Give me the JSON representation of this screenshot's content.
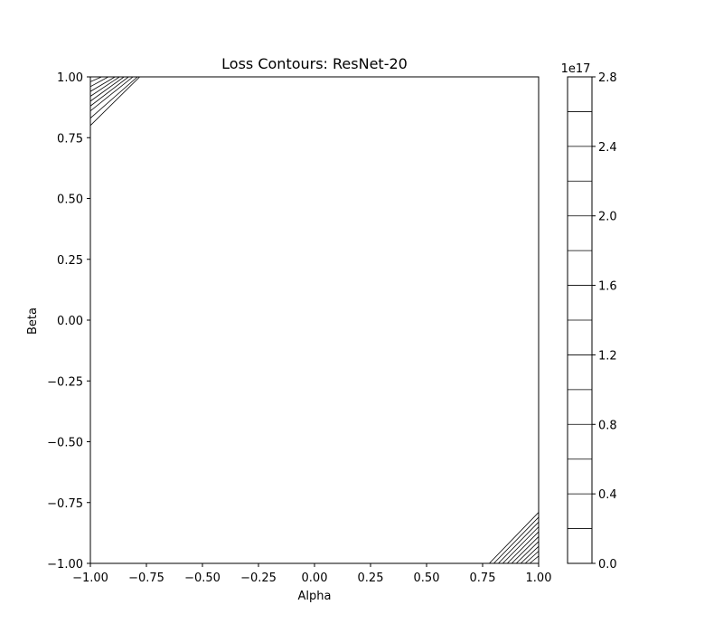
{
  "chart_data": {
    "type": "contour",
    "title": "Loss Contours: ResNet-20",
    "xlabel": "Alpha",
    "ylabel": "Beta",
    "xlim": [
      -1.0,
      1.0
    ],
    "ylim": [
      -1.0,
      1.0
    ],
    "x_ticks": [
      -1.0,
      -0.75,
      -0.5,
      -0.25,
      0.0,
      0.25,
      0.5,
      0.75,
      1.0
    ],
    "x_tick_labels": [
      "−1.00",
      "−0.75",
      "−0.50",
      "−0.25",
      "0.00",
      "0.25",
      "0.50",
      "0.75",
      "1.00"
    ],
    "y_ticks": [
      -1.0,
      -0.75,
      -0.5,
      -0.25,
      0.0,
      0.25,
      0.5,
      0.75,
      1.0
    ],
    "y_tick_labels": [
      "−1.00",
      "−0.75",
      "−0.50",
      "−0.25",
      "0.00",
      "0.25",
      "0.50",
      "0.75",
      "1.00"
    ],
    "contour_lines": [
      {
        "region": "top-left",
        "points": [
          [
            -1.0,
            0.8
          ],
          [
            -0.78,
            1.0
          ]
        ]
      },
      {
        "region": "top-left",
        "points": [
          [
            -1.0,
            0.83
          ],
          [
            -0.79,
            1.0
          ]
        ]
      },
      {
        "region": "top-left",
        "points": [
          [
            -1.0,
            0.86
          ],
          [
            -0.81,
            1.0
          ]
        ]
      },
      {
        "region": "top-left",
        "points": [
          [
            -1.0,
            0.88
          ],
          [
            -0.83,
            1.0
          ]
        ]
      },
      {
        "region": "top-left",
        "points": [
          [
            -1.0,
            0.9
          ],
          [
            -0.85,
            1.0
          ]
        ]
      },
      {
        "region": "top-left",
        "points": [
          [
            -1.0,
            0.92
          ],
          [
            -0.87,
            1.0
          ]
        ]
      },
      {
        "region": "top-left",
        "points": [
          [
            -1.0,
            0.94
          ],
          [
            -0.89,
            1.0
          ]
        ]
      },
      {
        "region": "top-left",
        "points": [
          [
            -1.0,
            0.96
          ],
          [
            -0.92,
            1.0
          ]
        ]
      },
      {
        "region": "top-left",
        "points": [
          [
            -1.0,
            0.98
          ],
          [
            -0.95,
            1.0
          ]
        ]
      },
      {
        "region": "bottom-right",
        "points": [
          [
            0.78,
            -1.0
          ],
          [
            1.0,
            -0.79
          ]
        ]
      },
      {
        "region": "bottom-right",
        "points": [
          [
            0.8,
            -1.0
          ],
          [
            1.0,
            -0.81
          ]
        ]
      },
      {
        "region": "bottom-right",
        "points": [
          [
            0.82,
            -1.0
          ],
          [
            1.0,
            -0.83
          ]
        ]
      },
      {
        "region": "bottom-right",
        "points": [
          [
            0.84,
            -1.0
          ],
          [
            1.0,
            -0.85
          ]
        ]
      },
      {
        "region": "bottom-right",
        "points": [
          [
            0.86,
            -1.0
          ],
          [
            1.0,
            -0.87
          ]
        ]
      },
      {
        "region": "bottom-right",
        "points": [
          [
            0.88,
            -1.0
          ],
          [
            1.0,
            -0.89
          ]
        ]
      },
      {
        "region": "bottom-right",
        "points": [
          [
            0.9,
            -1.0
          ],
          [
            1.0,
            -0.91
          ]
        ]
      },
      {
        "region": "bottom-right",
        "points": [
          [
            0.92,
            -1.0
          ],
          [
            1.0,
            -0.93
          ]
        ]
      },
      {
        "region": "bottom-right",
        "points": [
          [
            0.94,
            -1.0
          ],
          [
            1.0,
            -0.95
          ]
        ]
      },
      {
        "region": "bottom-right",
        "points": [
          [
            0.96,
            -1.0
          ],
          [
            1.0,
            -0.97
          ]
        ]
      }
    ],
    "colorbar": {
      "offset_label": "1e17",
      "range": [
        0.0,
        2.8
      ],
      "levels": [
        0.0,
        0.2,
        0.4,
        0.6,
        0.8,
        1.0,
        1.2,
        1.4,
        1.6,
        1.8,
        2.0,
        2.2,
        2.4,
        2.6,
        2.8
      ],
      "tick_values": [
        0.0,
        0.4,
        0.8,
        1.2,
        1.6,
        2.0,
        2.4,
        2.8
      ],
      "tick_labels": [
        "0.0",
        "0.4",
        "0.8",
        "1.2",
        "1.6",
        "2.0",
        "2.4",
        "2.8"
      ]
    },
    "grid": false,
    "colors": {
      "line": "#000000",
      "background": "#ffffff"
    }
  }
}
